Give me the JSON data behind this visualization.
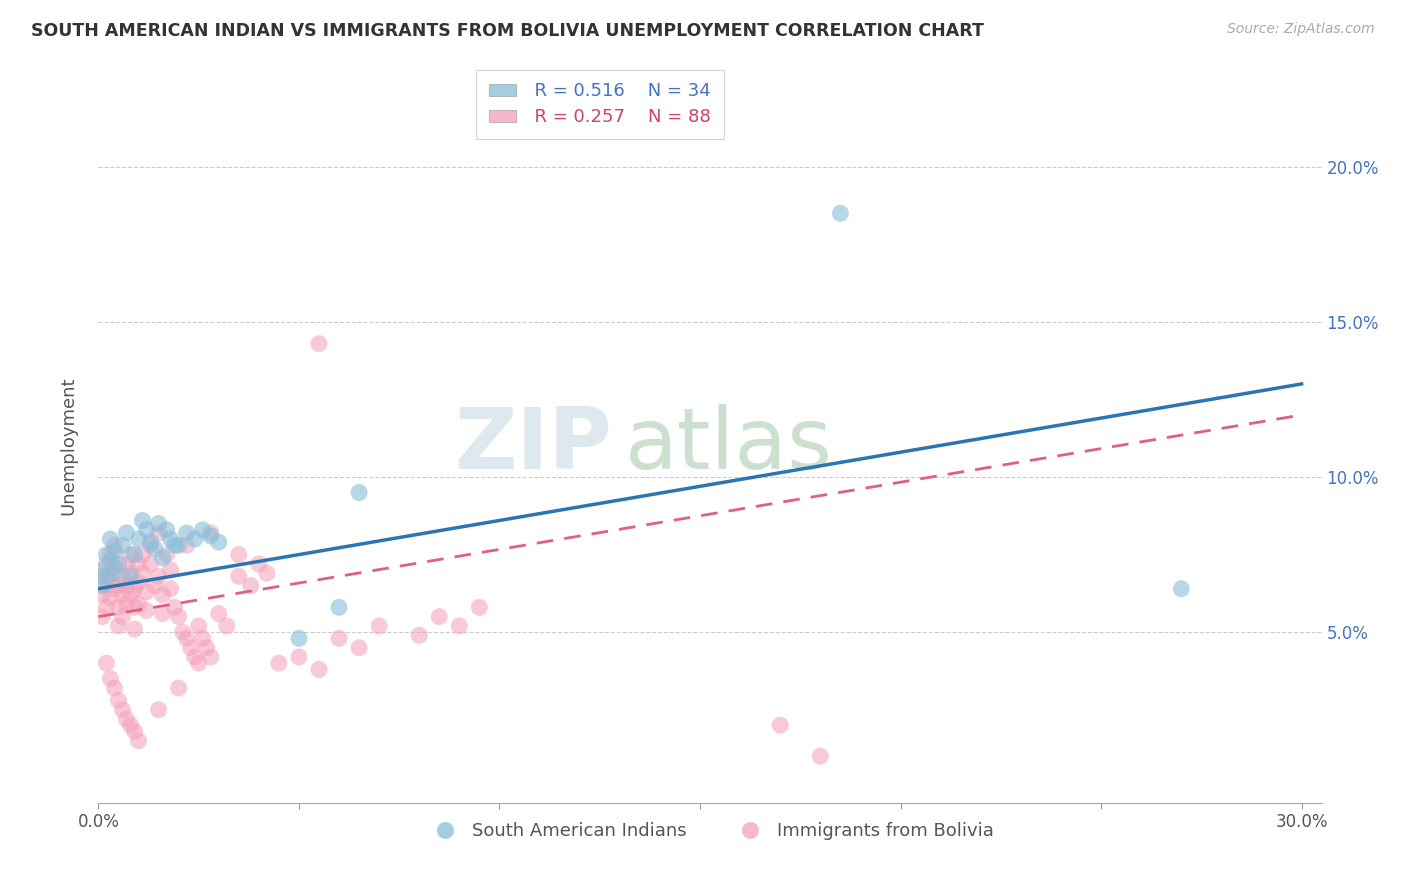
{
  "title": "SOUTH AMERICAN INDIAN VS IMMIGRANTS FROM BOLIVIA UNEMPLOYMENT CORRELATION CHART",
  "source": "Source: ZipAtlas.com",
  "ylabel": "Unemployment",
  "xlim": [
    0.0,
    0.305
  ],
  "ylim": [
    -0.005,
    0.225
  ],
  "xticks": [
    0.0,
    0.05,
    0.1,
    0.15,
    0.2,
    0.25,
    0.3
  ],
  "xtick_labels": [
    "0.0%",
    "",
    "",
    "",
    "",
    "",
    "30.0%"
  ],
  "yticks": [
    0.05,
    0.1,
    0.15,
    0.2
  ],
  "ytick_labels_right": [
    "5.0%",
    "10.0%",
    "15.0%",
    "20.0%"
  ],
  "legend_r1": "R = 0.516",
  "legend_n1": "N = 34",
  "legend_r2": "R = 0.257",
  "legend_n2": "N = 88",
  "blue_color": "#87bdd8",
  "pink_color": "#f4a0b8",
  "trend_blue_color": "#2c75b3",
  "trend_pink_color": "#e06080",
  "blue_trend_x": [
    0.0,
    0.3
  ],
  "blue_trend_y": [
    0.064,
    0.13
  ],
  "pink_trend_x": [
    0.0,
    0.3
  ],
  "pink_trend_y": [
    0.055,
    0.12
  ],
  "watermark_zip": "ZIP",
  "watermark_atlas": "atlas",
  "label1": "South American Indians",
  "label2": "Immigrants from Bolivia",
  "grid_color": "#cccccc",
  "background_color": "#ffffff",
  "blue_x": [
    0.001,
    0.001,
    0.002,
    0.002,
    0.003,
    0.003,
    0.004,
    0.004,
    0.005,
    0.006,
    0.007,
    0.008,
    0.009,
    0.01,
    0.011,
    0.012,
    0.013,
    0.014,
    0.015,
    0.016,
    0.017,
    0.018,
    0.019,
    0.02,
    0.022,
    0.024,
    0.026,
    0.028,
    0.03,
    0.05,
    0.06,
    0.065,
    0.27,
    0.185
  ],
  "blue_y": [
    0.07,
    0.065,
    0.075,
    0.068,
    0.08,
    0.073,
    0.076,
    0.069,
    0.072,
    0.078,
    0.082,
    0.068,
    0.075,
    0.08,
    0.086,
    0.083,
    0.079,
    0.077,
    0.085,
    0.074,
    0.083,
    0.08,
    0.078,
    0.078,
    0.082,
    0.08,
    0.083,
    0.081,
    0.079,
    0.048,
    0.058,
    0.095,
    0.064,
    0.185
  ],
  "pink_x": [
    0.001,
    0.001,
    0.001,
    0.002,
    0.002,
    0.002,
    0.003,
    0.003,
    0.003,
    0.004,
    0.004,
    0.004,
    0.005,
    0.005,
    0.005,
    0.006,
    0.006,
    0.006,
    0.007,
    0.007,
    0.007,
    0.008,
    0.008,
    0.008,
    0.009,
    0.009,
    0.009,
    0.01,
    0.01,
    0.01,
    0.011,
    0.011,
    0.012,
    0.012,
    0.013,
    0.013,
    0.014,
    0.015,
    0.015,
    0.016,
    0.016,
    0.017,
    0.018,
    0.018,
    0.019,
    0.02,
    0.021,
    0.022,
    0.023,
    0.024,
    0.025,
    0.026,
    0.027,
    0.028,
    0.03,
    0.032,
    0.035,
    0.038,
    0.04,
    0.042,
    0.045,
    0.05,
    0.055,
    0.06,
    0.065,
    0.07,
    0.08,
    0.085,
    0.09,
    0.095,
    0.055,
    0.002,
    0.003,
    0.004,
    0.005,
    0.006,
    0.007,
    0.008,
    0.009,
    0.01,
    0.015,
    0.02,
    0.025,
    0.17,
    0.18,
    0.022,
    0.028,
    0.035
  ],
  "pink_y": [
    0.068,
    0.062,
    0.055,
    0.072,
    0.065,
    0.058,
    0.075,
    0.068,
    0.061,
    0.078,
    0.071,
    0.064,
    0.065,
    0.058,
    0.052,
    0.068,
    0.062,
    0.055,
    0.072,
    0.065,
    0.059,
    0.075,
    0.069,
    0.062,
    0.064,
    0.058,
    0.051,
    0.072,
    0.066,
    0.059,
    0.075,
    0.069,
    0.063,
    0.057,
    0.078,
    0.072,
    0.065,
    0.082,
    0.068,
    0.062,
    0.056,
    0.075,
    0.07,
    0.064,
    0.058,
    0.055,
    0.05,
    0.048,
    0.045,
    0.042,
    0.052,
    0.048,
    0.045,
    0.042,
    0.056,
    0.052,
    0.068,
    0.065,
    0.072,
    0.069,
    0.04,
    0.042,
    0.038,
    0.048,
    0.045,
    0.052,
    0.049,
    0.055,
    0.052,
    0.058,
    0.143,
    0.04,
    0.035,
    0.032,
    0.028,
    0.025,
    0.022,
    0.02,
    0.018,
    0.015,
    0.025,
    0.032,
    0.04,
    0.02,
    0.01,
    0.078,
    0.082,
    0.075
  ]
}
